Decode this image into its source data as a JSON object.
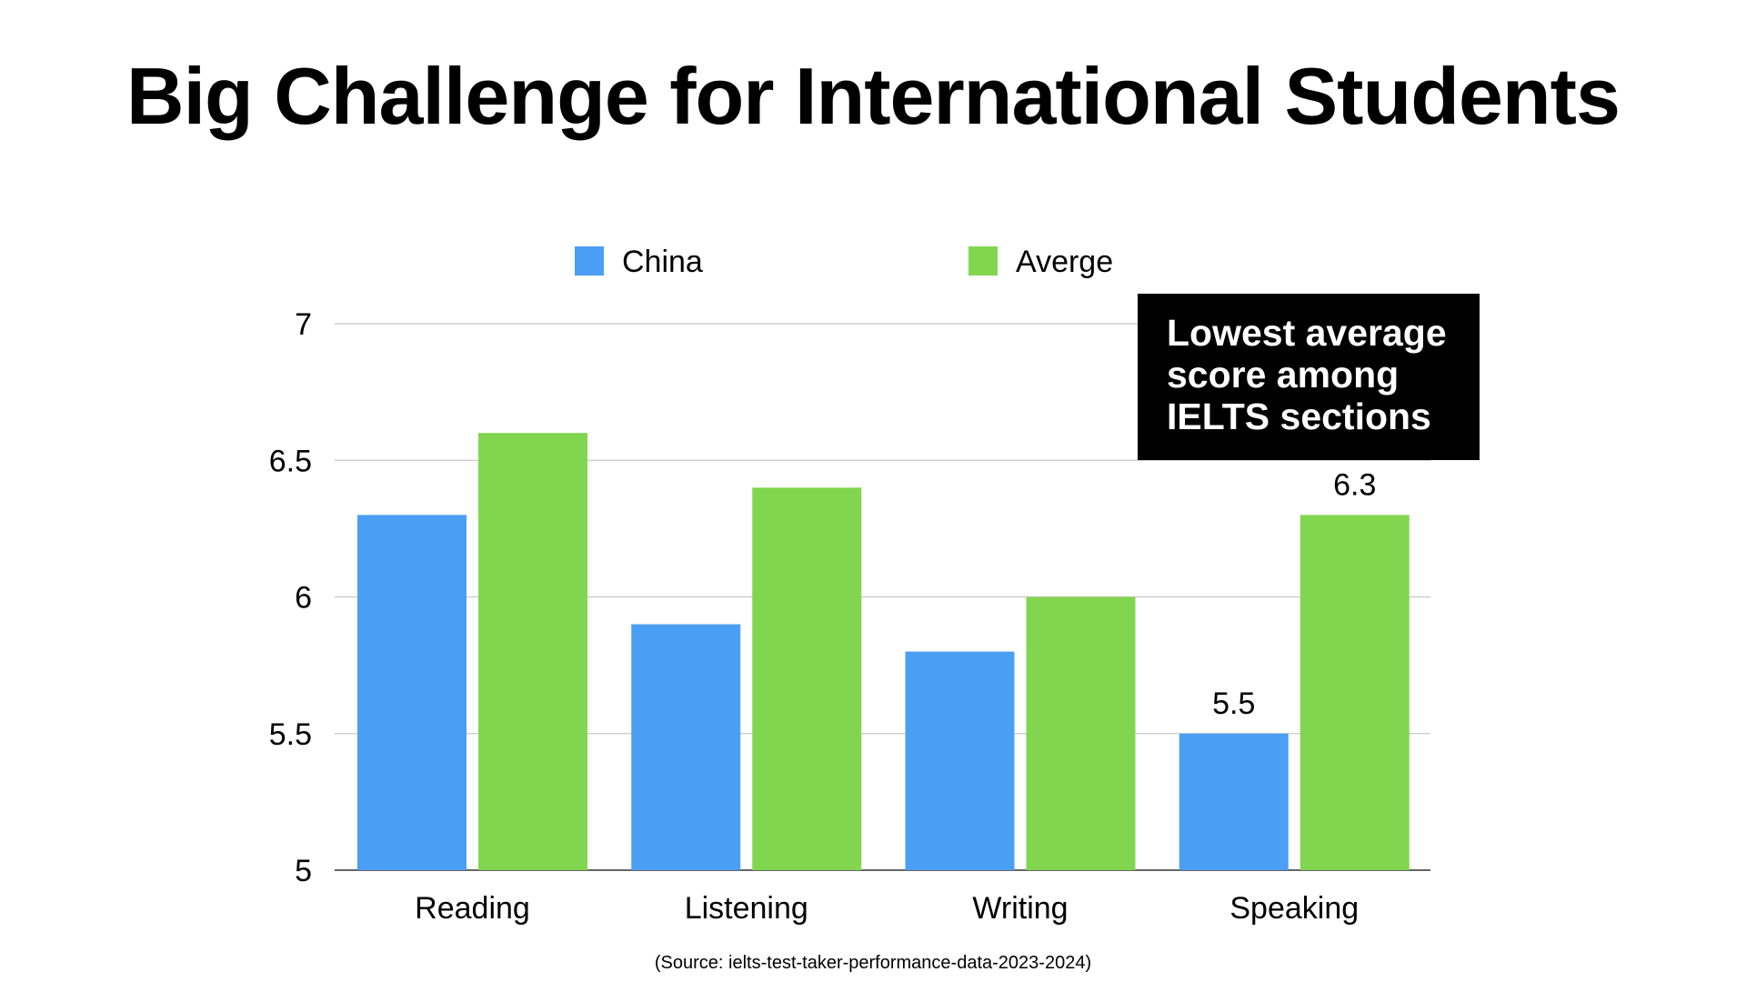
{
  "title": "Big Challenge for International Students",
  "callout": {
    "lines": [
      "Lowest average",
      "score among",
      "IELTS sections"
    ]
  },
  "source": "(Source: ielts-test-taker-performance-data-2023-2024)",
  "colors": {
    "china": "#4a9ff5",
    "average": "#82d64f",
    "grid": "#c8c8c8",
    "axis": "#333333"
  },
  "chart_data": {
    "type": "bar",
    "categories": [
      "Reading",
      "Listening",
      "Writing",
      "Speaking"
    ],
    "series": [
      {
        "name": "China",
        "values": [
          6.3,
          5.9,
          5.8,
          5.5
        ]
      },
      {
        "name": "Averge",
        "values": [
          6.6,
          6.4,
          6.0,
          6.3
        ]
      }
    ],
    "yticks": [
      "5",
      "5.5",
      "6",
      "6.5",
      "7"
    ],
    "ylim": [
      5,
      7
    ],
    "grid": true,
    "legend": "top",
    "data_labels": [
      {
        "series": 0,
        "index": 3,
        "text": "5.5"
      },
      {
        "series": 1,
        "index": 3,
        "text": "6.3"
      }
    ]
  }
}
